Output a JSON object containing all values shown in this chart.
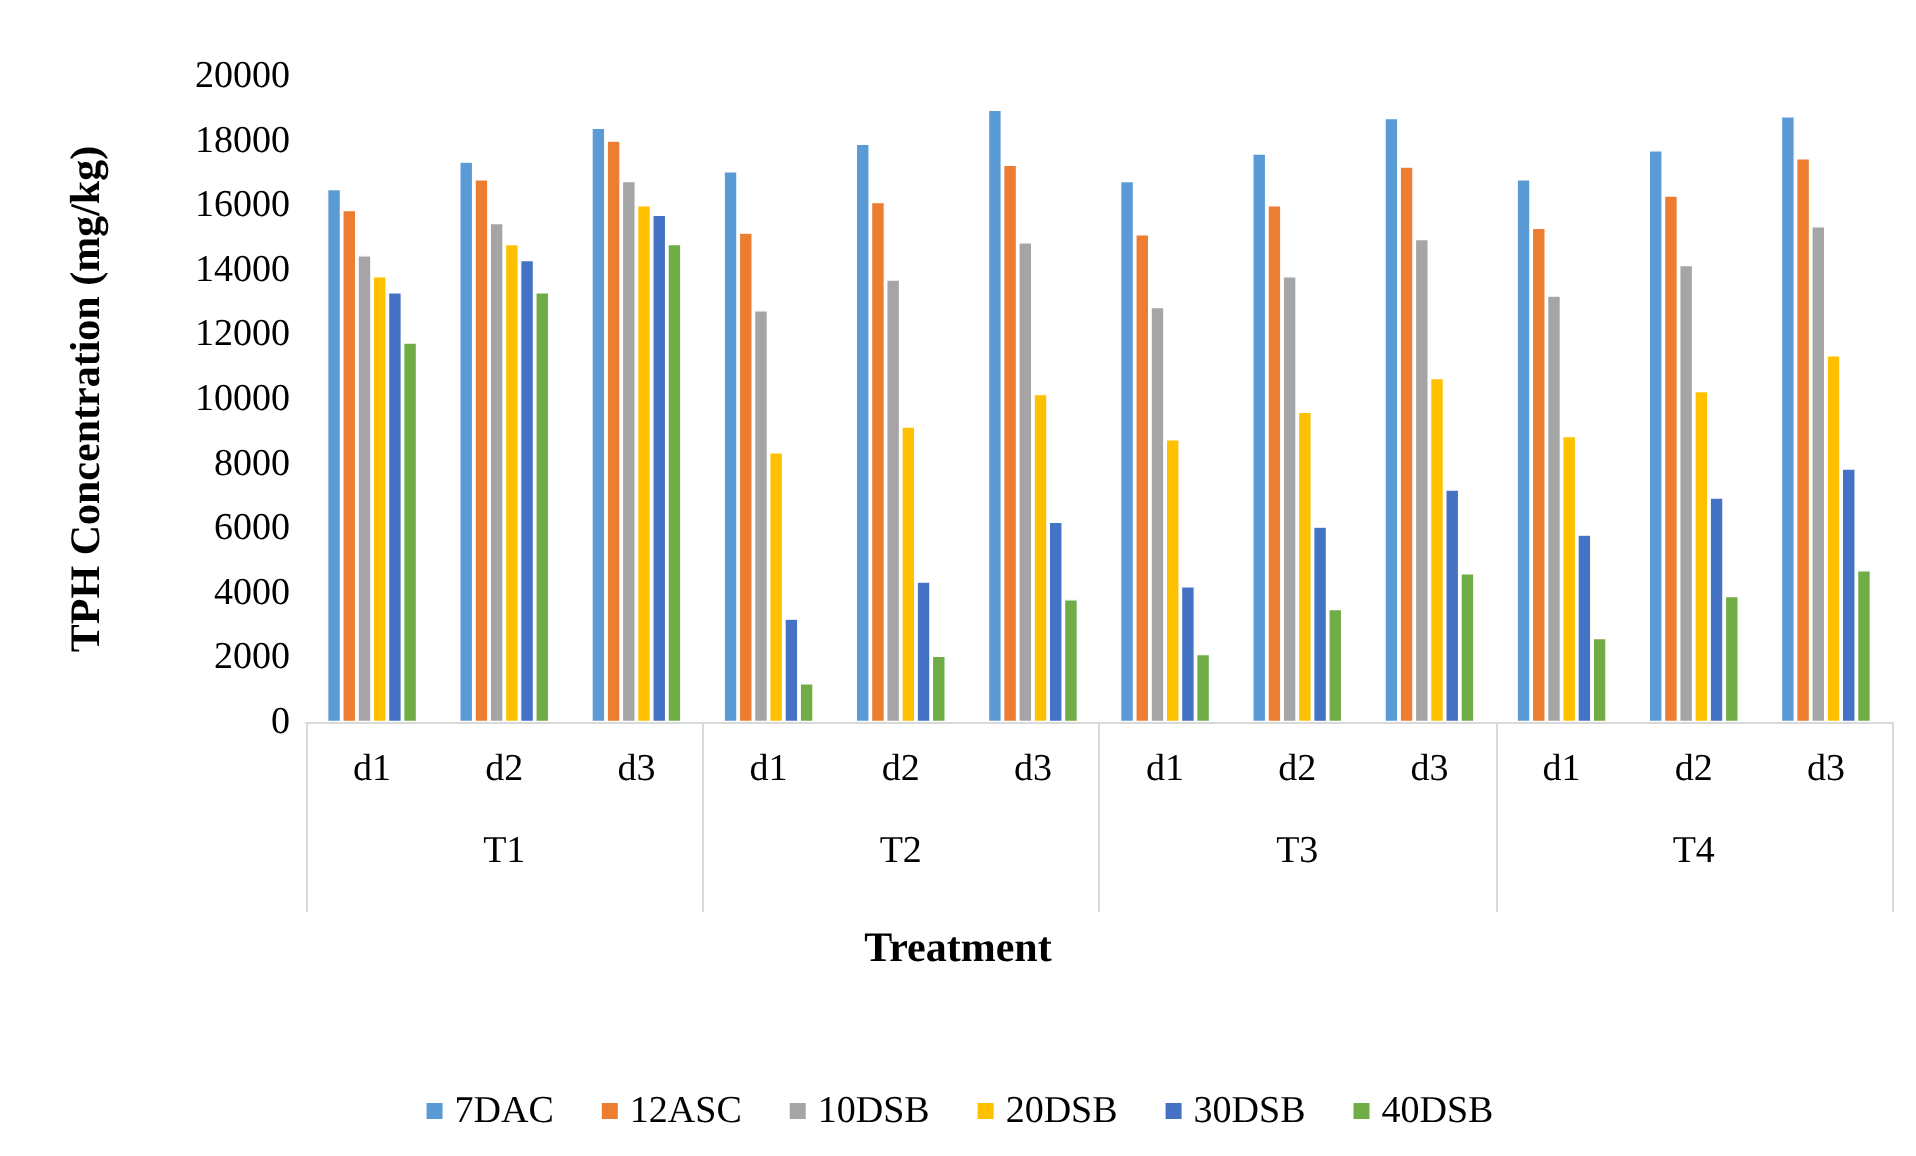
{
  "chart_data": {
    "type": "bar",
    "xlabel": "Treatment",
    "ylabel": "TPH Concentration (mg/kg)",
    "categories": [
      "d1",
      "d2",
      "d3",
      "d1",
      "d2",
      "d3",
      "d1",
      "d2",
      "d3",
      "d1",
      "d2",
      "d3"
    ],
    "annotations": [
      "T1",
      "T2",
      "T3",
      "T4"
    ],
    "series": [
      {
        "name": "7DAC",
        "color": "#5b9bd5",
        "values": [
          16500,
          17350,
          18400,
          17050,
          17900,
          18950,
          16750,
          17600,
          18700,
          16800,
          17700,
          18750
        ]
      },
      {
        "name": "12ASC",
        "color": "#ed7d31",
        "values": [
          15850,
          16800,
          18000,
          15150,
          16100,
          17250,
          15100,
          16000,
          17200,
          15300,
          16300,
          17450
        ]
      },
      {
        "name": "10DSB",
        "color": "#a5a5a5",
        "values": [
          14450,
          15450,
          16750,
          12750,
          13700,
          14850,
          12850,
          13800,
          14950,
          13200,
          14150,
          15350
        ]
      },
      {
        "name": "20DSB",
        "color": "#ffc000",
        "values": [
          13800,
          14800,
          16000,
          8350,
          9150,
          10150,
          8750,
          9600,
          10650,
          8850,
          10250,
          11350
        ]
      },
      {
        "name": "30DSB",
        "color": "#4472c4",
        "values": [
          13300,
          14300,
          15700,
          3200,
          4350,
          6200,
          4200,
          6050,
          7200,
          5800,
          6950,
          7850
        ]
      },
      {
        "name": "40DSB",
        "color": "#70ad47",
        "values": [
          11750,
          13300,
          14800,
          1200,
          2050,
          3800,
          2100,
          3500,
          4600,
          2600,
          3900,
          4700
        ]
      }
    ],
    "ylim": [
      0,
      20000
    ],
    "yticks": [
      0,
      2000,
      4000,
      6000,
      8000,
      10000,
      12000,
      14000,
      16000,
      18000,
      20000
    ],
    "grid": false,
    "legend": "bottom"
  }
}
